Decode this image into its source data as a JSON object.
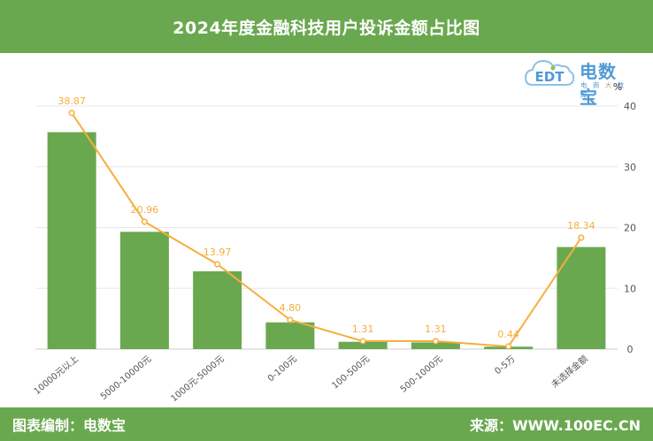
{
  "header": {
    "title": "2024年度金融科技用户投诉金额占比图"
  },
  "footer": {
    "left": "图表编制：电数宝",
    "right": "来源：WWW.100EC.CN"
  },
  "logo": {
    "main": "电数宝",
    "sub_parts": [
      "电 商 ",
      "大",
      " 数 库"
    ],
    "cloud_text": "EDT"
  },
  "colors": {
    "header_bg": "#6aa84f",
    "bar": "#6aa84f",
    "line": "#f6ae3c",
    "grid": "#e8e8e8",
    "axis_text": "#555555"
  },
  "chart_data": {
    "type": "bar",
    "categories": [
      "10000元以上",
      "5000-10000元",
      "1000元-5000元",
      "0-100元",
      "100-500元",
      "500-1000元",
      "0-5万",
      "未选择金额"
    ],
    "series": [
      {
        "type": "bar",
        "values": [
          35.7,
          19.3,
          12.8,
          4.4,
          1.2,
          1.1,
          0.4,
          16.8
        ]
      },
      {
        "type": "line",
        "values": [
          38.87,
          20.96,
          13.97,
          4.8,
          1.31,
          1.31,
          0.44,
          18.34
        ],
        "labels": [
          "38.87",
          "20.96",
          "13.97",
          "4.80",
          "1.31",
          "1.31",
          "0.44",
          "18.34"
        ]
      }
    ],
    "y_axis": {
      "position": "right",
      "unit": "%",
      "ticks": [
        0,
        10,
        20,
        30,
        40
      ],
      "range": [
        0,
        40
      ]
    },
    "grid": true
  }
}
